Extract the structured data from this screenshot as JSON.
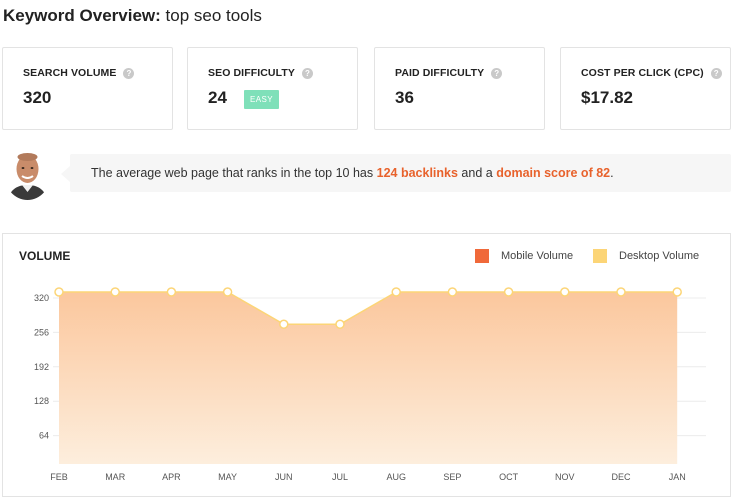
{
  "header": {
    "title_bold": "Keyword Overview:",
    "title_keyword": "top seo tools"
  },
  "cards": [
    {
      "label": "SEARCH VOLUME",
      "value": "320"
    },
    {
      "label": "SEO DIFFICULTY",
      "value": "24",
      "badge": "EASY"
    },
    {
      "label": "PAID DIFFICULTY",
      "value": "36"
    },
    {
      "label": "COST PER CLICK (CPC)",
      "value": "$17.82"
    }
  ],
  "help_icon": "?",
  "insight": {
    "prefix": "The average web page that ranks in the top 10 has",
    "backlinks": "124 backlinks",
    "middle": "and a",
    "domain_score": "domain score of 82",
    "suffix": "."
  },
  "chart_data": {
    "type": "area",
    "title": "VOLUME",
    "categories": [
      "FEB",
      "MAR",
      "APR",
      "MAY",
      "JUN",
      "JUL",
      "AUG",
      "SEP",
      "OCT",
      "NOV",
      "DEC",
      "JAN"
    ],
    "y_ticks": [
      "320",
      "256",
      "192",
      "128",
      "64"
    ],
    "ylim": [
      0,
      320
    ],
    "series": [
      {
        "name": "Mobile Volume",
        "color": "#f0693a",
        "values": [
          320,
          320,
          320,
          320,
          260,
          260,
          320,
          320,
          320,
          320,
          320,
          320
        ]
      },
      {
        "name": "Desktop Volume",
        "color": "#fcd577",
        "values": [
          320,
          320,
          320,
          320,
          260,
          260,
          320,
          320,
          320,
          320,
          320,
          320
        ]
      }
    ],
    "legend_position": "top-right",
    "grid": true
  },
  "colors": {
    "accent": "#e8622c",
    "area_fill": "#fbcfa6",
    "badge": "#7fe0b9"
  }
}
